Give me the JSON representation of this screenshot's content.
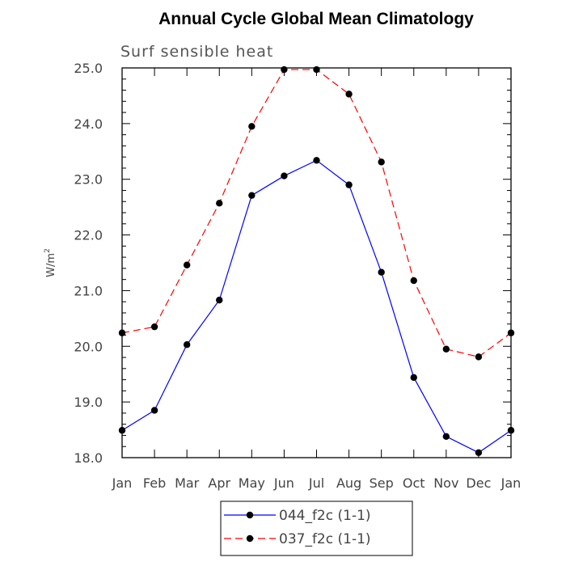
{
  "chart_data": {
    "type": "line",
    "title": "Annual Cycle Global Mean Climatology",
    "subtitle": "Surf sensible heat",
    "xlabel": "",
    "ylabel": "W/m",
    "ylabel_superscript": "2",
    "categories": [
      "Jan",
      "Feb",
      "Mar",
      "Apr",
      "May",
      "Jun",
      "Jul",
      "Aug",
      "Sep",
      "Oct",
      "Nov",
      "Dec",
      "Jan"
    ],
    "ylim": [
      18.0,
      25.0
    ],
    "yticks": [
      "18.0",
      "19.0",
      "20.0",
      "21.0",
      "22.0",
      "23.0",
      "24.0",
      "25.0"
    ],
    "grid": false,
    "legend_position": "bottom",
    "series": [
      {
        "name": "044_f2c (1-1)",
        "color": "#0000ff",
        "dash": "solid",
        "values": [
          18.49,
          18.85,
          20.03,
          20.83,
          22.71,
          23.06,
          23.34,
          22.9,
          21.33,
          19.44,
          18.38,
          18.09,
          18.49
        ]
      },
      {
        "name": "037_f2c (1-1)",
        "color": "#ff0000",
        "dash": "dashed",
        "values": [
          20.24,
          20.35,
          21.46,
          22.57,
          23.95,
          24.97,
          24.97,
          24.53,
          23.31,
          21.18,
          19.95,
          19.81,
          20.24
        ]
      }
    ]
  }
}
